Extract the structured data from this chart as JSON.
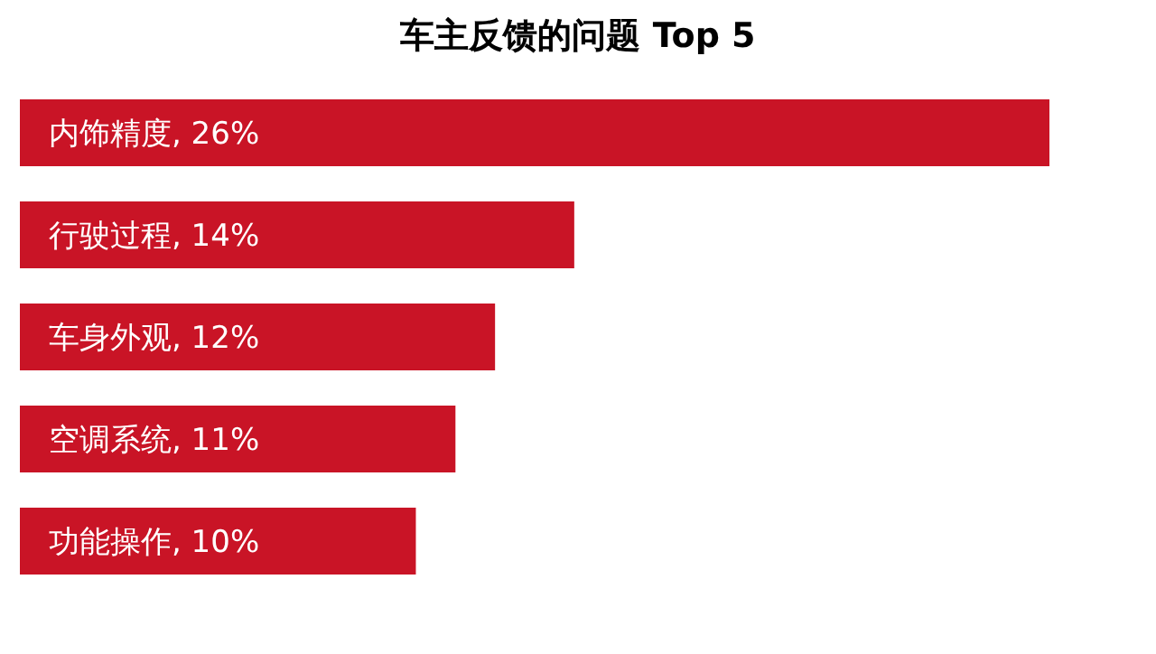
{
  "chart_data": {
    "type": "bar",
    "orientation": "horizontal",
    "title": "车主反馈的问题 Top 5",
    "categories": [
      null,
      null,
      null,
      null,
      null
    ],
    "values": [
      26,
      14,
      12,
      11,
      10
    ],
    "value_labels": [
      "内饰精度, 26%",
      "行驶过程, 14%",
      "车身外观, 12%",
      "空调系统, 11%",
      "功能操作, 10%"
    ],
    "color": "#c91426"
  }
}
